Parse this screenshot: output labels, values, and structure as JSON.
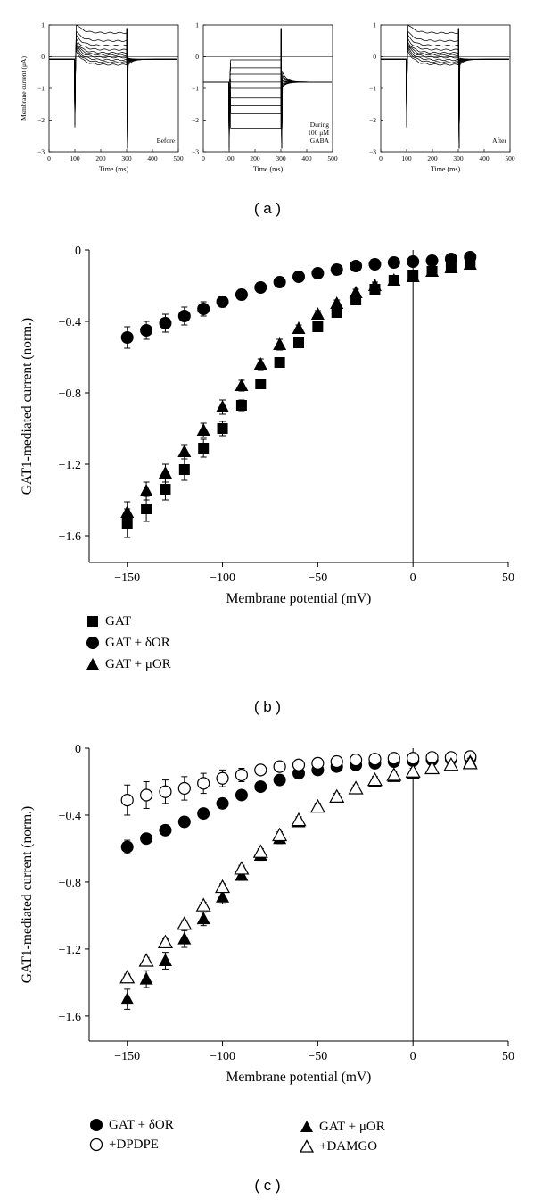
{
  "panel_labels": {
    "a": "( a )",
    "b": "( b )",
    "c": "( c )"
  },
  "legend_b": [
    "GAT",
    "GAT + δOR",
    "GAT + μOR"
  ],
  "legend_c": [
    "GAT + δOR",
    "+DPDPE",
    "GAT + μOR",
    "+DAMGO"
  ],
  "chart_data": [
    {
      "type": "line",
      "id": "a-before",
      "ylabel": "Membrane current (μA)",
      "xlabel": "Time (ms)",
      "annotation": "Before",
      "xlim": [
        0,
        500
      ],
      "ylim": [
        -3,
        1
      ],
      "xticks": [
        0,
        100,
        200,
        300,
        400,
        500
      ],
      "yticks": [
        1,
        0,
        -1,
        -2,
        -3
      ],
      "baseline": -0.08,
      "steady_levels": [
        0.75,
        0.5,
        0.35,
        0.22,
        0.12,
        0.05,
        -0.02,
        -0.1,
        -0.17,
        -0.25
      ],
      "step_on": 100,
      "step_off": 300
    },
    {
      "type": "line",
      "id": "a-during",
      "xlabel": "Time (ms)",
      "annotation": [
        "During",
        "100 μM",
        "GABA"
      ],
      "xlim": [
        0,
        500
      ],
      "ylim": [
        -3,
        1
      ],
      "xticks": [
        0,
        100,
        200,
        300,
        400,
        500
      ],
      "yticks": [
        1,
        0,
        -1,
        -2,
        -3
      ],
      "baseline": -0.8,
      "steady_levels": [
        -0.1,
        -0.2,
        -0.35,
        -0.55,
        -0.8,
        -1.0,
        -1.3,
        -1.55,
        -1.8,
        -2.25
      ],
      "step_on": 100,
      "step_off": 300
    },
    {
      "type": "line",
      "id": "a-after",
      "xlabel": "Time (ms)",
      "annotation": "After",
      "xlim": [
        0,
        500
      ],
      "ylim": [
        -3,
        1
      ],
      "xticks": [
        0,
        100,
        200,
        300,
        400,
        500
      ],
      "yticks": [
        1,
        0,
        -1,
        -2,
        -3
      ],
      "baseline": -0.08,
      "steady_levels": [
        0.75,
        0.5,
        0.35,
        0.22,
        0.12,
        0.05,
        -0.02,
        -0.1,
        -0.17,
        -0.25
      ],
      "step_on": 100,
      "step_off": 300
    },
    {
      "type": "scatter",
      "id": "b",
      "xlabel": "Membrane potential (mV)",
      "ylabel": "GAT1-mediated current (norm.)",
      "xlim": [
        -170,
        50
      ],
      "ylim": [
        -1.75,
        0
      ],
      "xticks": [
        -150,
        -100,
        -50,
        0,
        50
      ],
      "yticks": [
        0,
        -0.4,
        -0.8,
        -1.2,
        -1.6
      ],
      "ytick_labels": [
        "0",
        "−0.4",
        "−0.8",
        "−1.2",
        "−1.6"
      ],
      "xtick_labels": [
        "−150",
        "−100",
        "−50",
        "0",
        "50"
      ],
      "x": [
        -150,
        -140,
        -130,
        -120,
        -110,
        -100,
        -90,
        -80,
        -70,
        -60,
        -50,
        -40,
        -30,
        -20,
        -10,
        0,
        10,
        20,
        30
      ],
      "series": [
        {
          "name": "GAT",
          "marker": "square",
          "values": [
            -1.53,
            -1.45,
            -1.34,
            -1.23,
            -1.11,
            -1.0,
            -0.87,
            -0.75,
            -0.63,
            -0.52,
            -0.43,
            -0.35,
            -0.28,
            -0.22,
            -0.17,
            -0.14,
            -0.12,
            -0.09,
            -0.07
          ],
          "err": [
            0.08,
            0.07,
            0.06,
            0.06,
            0.05,
            0.04,
            0.03,
            0.02,
            0.02,
            0.02,
            0.02,
            0.02,
            0.02,
            0.02,
            0.02,
            0.02,
            0.02,
            0.02,
            0.02
          ]
        },
        {
          "name": "GAT + δOR",
          "marker": "circle",
          "values": [
            -0.49,
            -0.45,
            -0.41,
            -0.37,
            -0.33,
            -0.29,
            -0.25,
            -0.21,
            -0.18,
            -0.15,
            -0.13,
            -0.11,
            -0.09,
            -0.08,
            -0.07,
            -0.065,
            -0.06,
            -0.05,
            -0.04
          ],
          "err": [
            0.06,
            0.05,
            0.05,
            0.05,
            0.04,
            0.03,
            0.03,
            0.02,
            0.02,
            0.02,
            0.02,
            0.02,
            0.02,
            0.02,
            0.02,
            0.02,
            0.02,
            0.02,
            0.02
          ]
        },
        {
          "name": "GAT + μOR",
          "marker": "triangle",
          "values": [
            -1.47,
            -1.35,
            -1.25,
            -1.13,
            -1.01,
            -0.88,
            -0.76,
            -0.64,
            -0.53,
            -0.44,
            -0.36,
            -0.3,
            -0.24,
            -0.2,
            -0.17,
            -0.15,
            -0.12,
            -0.1,
            -0.08
          ],
          "err": [
            0.06,
            0.05,
            0.05,
            0.04,
            0.04,
            0.04,
            0.03,
            0.03,
            0.03,
            0.02,
            0.02,
            0.02,
            0.02,
            0.02,
            0.02,
            0.02,
            0.02,
            0.02,
            0.02
          ]
        }
      ]
    },
    {
      "type": "scatter",
      "id": "c",
      "xlabel": "Membrane potential (mV)",
      "ylabel": "GAT1-mediated current (norm.)",
      "xlim": [
        -170,
        50
      ],
      "ylim": [
        -1.75,
        0
      ],
      "xticks": [
        -150,
        -100,
        -50,
        0,
        50
      ],
      "yticks": [
        0,
        -0.4,
        -0.8,
        -1.2,
        -1.6
      ],
      "ytick_labels": [
        "0",
        "−0.4",
        "−0.8",
        "−1.2",
        "−1.6"
      ],
      "xtick_labels": [
        "−150",
        "−100",
        "−50",
        "0",
        "50"
      ],
      "x": [
        -150,
        -140,
        -130,
        -120,
        -110,
        -100,
        -90,
        -80,
        -70,
        -60,
        -50,
        -40,
        -30,
        -20,
        -10,
        0,
        10,
        20,
        30
      ],
      "series": [
        {
          "name": "GAT + δOR",
          "marker": "circle",
          "values": [
            -0.59,
            -0.54,
            -0.49,
            -0.44,
            -0.39,
            -0.33,
            -0.28,
            -0.23,
            -0.19,
            -0.15,
            -0.13,
            -0.11,
            -0.1,
            -0.09,
            -0.08,
            -0.075,
            -0.07,
            -0.065,
            -0.06
          ],
          "err": [
            0.04,
            0.03,
            0.03,
            0.03,
            0.03,
            0.02,
            0.02,
            0.02,
            0.02,
            0.02,
            0.02,
            0.02,
            0.02,
            0.02,
            0.02,
            0.02,
            0.02,
            0.02,
            0.02
          ]
        },
        {
          "name": "+DPDPE",
          "marker": "open-circle",
          "values": [
            -0.31,
            -0.28,
            -0.26,
            -0.24,
            -0.21,
            -0.18,
            -0.16,
            -0.13,
            -0.11,
            -0.1,
            -0.09,
            -0.08,
            -0.07,
            -0.065,
            -0.06,
            -0.06,
            -0.055,
            -0.055,
            -0.05
          ],
          "err": [
            0.09,
            0.08,
            0.07,
            0.07,
            0.06,
            0.05,
            0.04,
            0.03,
            0.03,
            0.03,
            0.03,
            0.03,
            0.03,
            0.03,
            0.03,
            0.03,
            0.03,
            0.03,
            0.03
          ]
        },
        {
          "name": "GAT + μOR",
          "marker": "triangle",
          "values": [
            -1.5,
            -1.38,
            -1.27,
            -1.14,
            -1.02,
            -0.89,
            -0.76,
            -0.64,
            -0.54,
            -0.44,
            -0.35,
            -0.29,
            -0.24,
            -0.2,
            -0.17,
            -0.15,
            -0.12,
            -0.1,
            -0.08
          ],
          "err": [
            0.06,
            0.05,
            0.05,
            0.05,
            0.04,
            0.04,
            0.03,
            0.03,
            0.03,
            0.02,
            0.02,
            0.02,
            0.02,
            0.02,
            0.02,
            0.02,
            0.02,
            0.02,
            0.02
          ]
        },
        {
          "name": "+DAMGO",
          "marker": "open-triangle",
          "values": [
            -1.37,
            -1.27,
            -1.16,
            -1.05,
            -0.94,
            -0.83,
            -0.72,
            -0.62,
            -0.52,
            -0.43,
            -0.35,
            -0.29,
            -0.24,
            -0.19,
            -0.16,
            -0.14,
            -0.12,
            -0.1,
            -0.09
          ],
          "err": [
            0.02,
            0.02,
            0.02,
            0.02,
            0.02,
            0.02,
            0.02,
            0.02,
            0.02,
            0.02,
            0.02,
            0.02,
            0.02,
            0.02,
            0.02,
            0.02,
            0.02,
            0.02,
            0.02
          ]
        }
      ]
    }
  ]
}
